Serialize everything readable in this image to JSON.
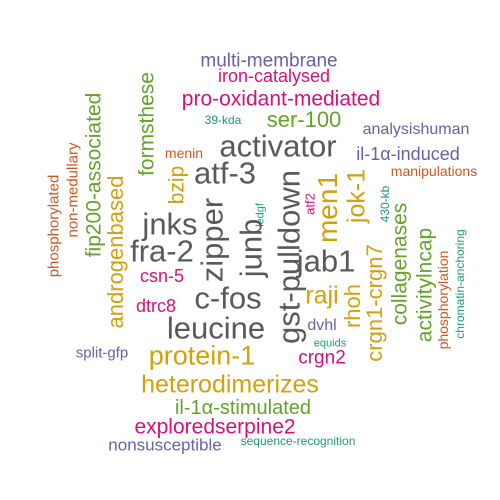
{
  "colors": {
    "gray": "#595959",
    "gold": "#D4A00C",
    "magenta": "#D6117A",
    "green": "#64A22A",
    "orange": "#D2581D",
    "purple": "#6B5FA7",
    "teal": "#1E9A75"
  },
  "words": [
    {
      "text": "multi-membrane",
      "color": "purple"
    },
    {
      "text": "iron-catalysed",
      "color": "magenta"
    },
    {
      "text": "pro-oxidant-mediated",
      "color": "magenta"
    },
    {
      "text": "39-kda",
      "color": "teal"
    },
    {
      "text": "ser-100",
      "color": "green"
    },
    {
      "text": "analysishuman",
      "color": "purple"
    },
    {
      "text": "menin",
      "color": "orange"
    },
    {
      "text": "activator",
      "color": "gray"
    },
    {
      "text": "il-1α-induced",
      "color": "purple"
    },
    {
      "text": "atf-3",
      "color": "gray"
    },
    {
      "text": "manipulations",
      "color": "orange"
    },
    {
      "text": "jnks",
      "color": "gray"
    },
    {
      "text": "fra-2",
      "color": "gray"
    },
    {
      "text": "jab1",
      "color": "gray"
    },
    {
      "text": "csn-5",
      "color": "magenta"
    },
    {
      "text": "raji",
      "color": "gold"
    },
    {
      "text": "c-fos",
      "color": "gray"
    },
    {
      "text": "dtrc8",
      "color": "magenta"
    },
    {
      "text": "leucine",
      "color": "gray"
    },
    {
      "text": "dvhl",
      "color": "purple"
    },
    {
      "text": "equids",
      "color": "teal"
    },
    {
      "text": "protein-1",
      "color": "gold"
    },
    {
      "text": "crgn2",
      "color": "magenta"
    },
    {
      "text": "split-gfp",
      "color": "purple"
    },
    {
      "text": "heterodimerizes",
      "color": "gold"
    },
    {
      "text": "il-1α-stimulated",
      "color": "green"
    },
    {
      "text": "exploredserpine2",
      "color": "magenta"
    },
    {
      "text": "nonsusceptible",
      "color": "purple"
    },
    {
      "text": "sequence-recognition",
      "color": "teal"
    },
    {
      "text": "phosphorylated",
      "color": "orange"
    },
    {
      "text": "non-medullary",
      "color": "orange"
    },
    {
      "text": "fip200-associated",
      "color": "green"
    },
    {
      "text": "androgenbased",
      "color": "gold"
    },
    {
      "text": "formsthese",
      "color": "green"
    },
    {
      "text": "bzip",
      "color": "gold"
    },
    {
      "text": "zipper",
      "color": "gray"
    },
    {
      "text": "ledgf",
      "color": "teal"
    },
    {
      "text": "junb",
      "color": "gray"
    },
    {
      "text": "gst-pulldown",
      "color": "gray"
    },
    {
      "text": "atf2",
      "color": "magenta"
    },
    {
      "text": "men1",
      "color": "gold"
    },
    {
      "text": "jok-1",
      "color": "gold"
    },
    {
      "text": "rhoh",
      "color": "gold"
    },
    {
      "text": "crgn1-crgn7",
      "color": "gold"
    },
    {
      "text": "430-kb",
      "color": "teal"
    },
    {
      "text": "collagenases",
      "color": "green"
    },
    {
      "text": "activitylncap",
      "color": "green"
    },
    {
      "text": "phosphorylation",
      "color": "orange"
    },
    {
      "text": "chromatin-anchoring",
      "color": "teal"
    }
  ]
}
